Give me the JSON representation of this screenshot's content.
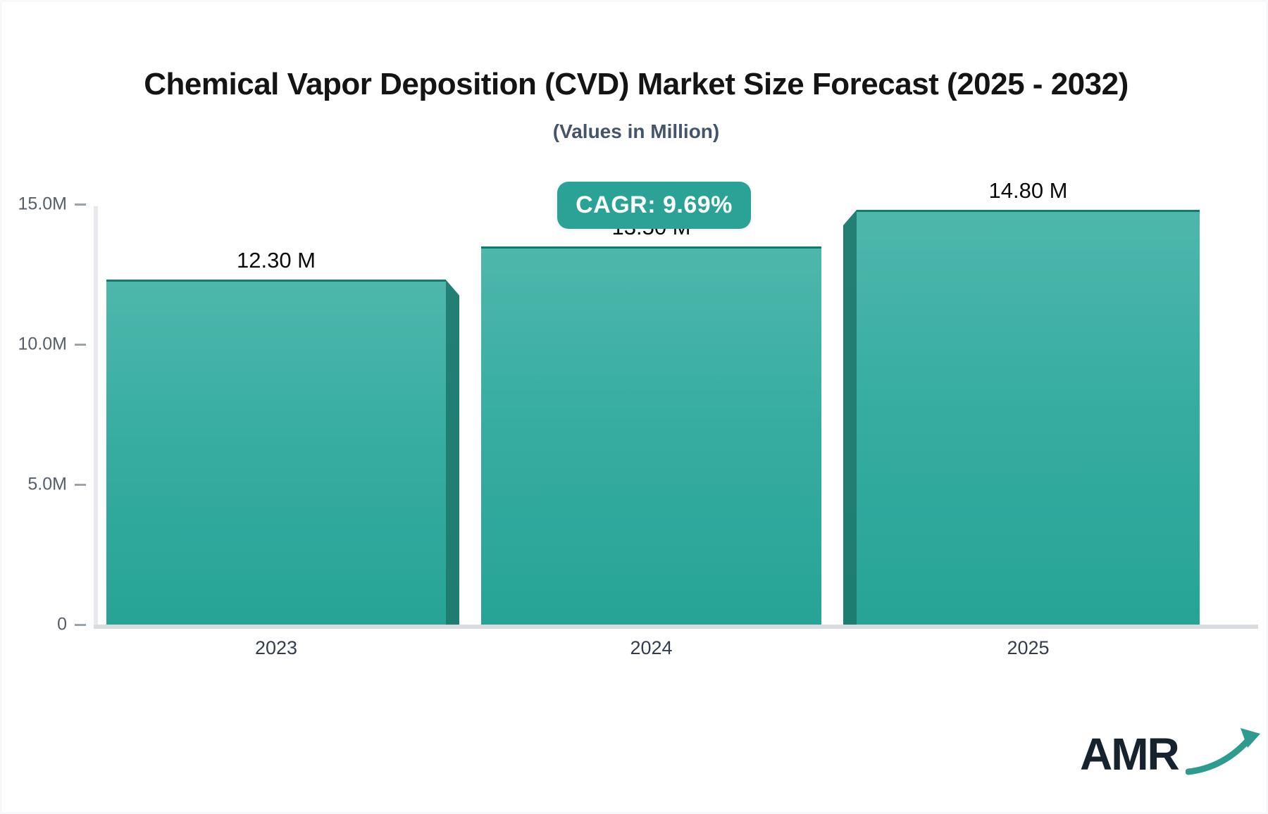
{
  "title": "Chemical Vapor Deposition (CVD) Market Size Forecast (2025 - 2032)",
  "subtitle": "(Values in Million)",
  "cagr_badge": "CAGR: 9.69%",
  "logo": {
    "text": "AMR",
    "arrow_icon": "growth-arrow-icon"
  },
  "colors": {
    "bar_top": "#4eb7ac",
    "bar_bottom": "#27a496",
    "bar_side_shadow": "#1e7d71",
    "bar_top_border": "#147a6e",
    "badge_bg": "#2aa396",
    "badge_text": "#ffffff",
    "axis_line": "#e7e9ed",
    "baseline": "#d8dbe0",
    "tick": "#9aa2ac",
    "title_text": "#141414",
    "subtitle_text": "#44546a",
    "axis_label_text": "#565e68",
    "x_label_text": "#333e4d",
    "logo_text": "#16222d",
    "logo_arrow": "#2d9b8e"
  },
  "chart_data": {
    "type": "bar",
    "title": "Chemical Vapor Deposition (CVD) Market Size Forecast (2025 - 2032)",
    "subtitle": "(Values in Million)",
    "categories": [
      "2023",
      "2024",
      "2025"
    ],
    "values": [
      12.3,
      13.5,
      14.8
    ],
    "value_labels": [
      "12.30 M",
      "13.50 M",
      "14.80 M"
    ],
    "unit": "Million",
    "cagr_percent": 9.69,
    "xlabel": "",
    "ylabel": "",
    "ylim": [
      0,
      15
    ],
    "yticks": [
      {
        "label": "15.0M",
        "value": 15
      },
      {
        "label": "10.0M",
        "value": 10
      },
      {
        "label": "5.0M",
        "value": 5
      },
      {
        "label": "0",
        "value": 0
      }
    ],
    "grid": false,
    "legend": "none"
  }
}
